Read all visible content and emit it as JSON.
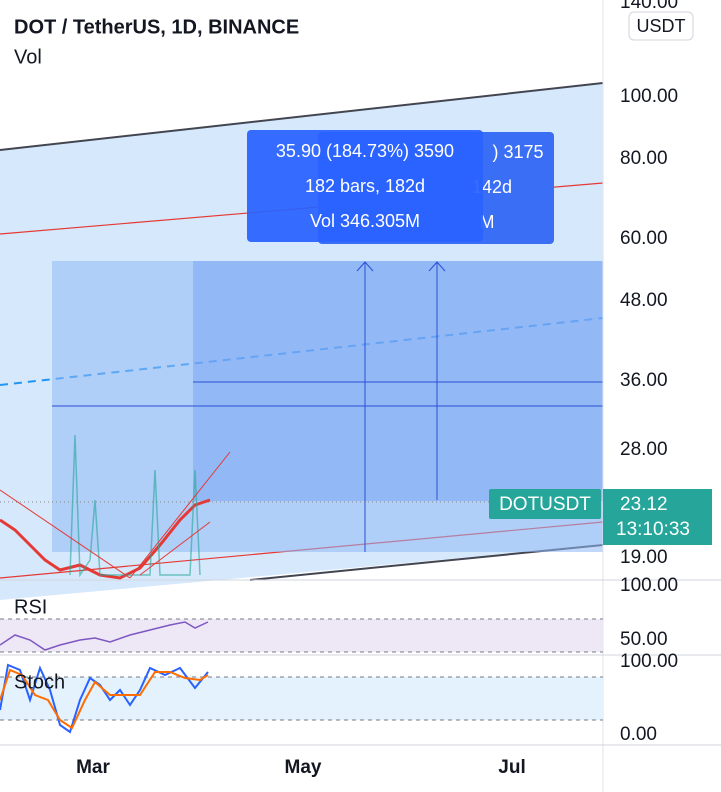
{
  "header": {
    "title": "DOT / TetherUS, 1D, BINANCE",
    "volume_label": "Vol"
  },
  "price_axis": {
    "labels": [
      "140.00",
      "100.00",
      "80.00",
      "60.00",
      "48.00",
      "36.00",
      "28.00",
      "19.00"
    ],
    "unit": "USDT"
  },
  "price_tag": {
    "symbol": "DOTUSDT",
    "price": "23.12",
    "countdown": "13:10:33"
  },
  "measure_front": {
    "lines": [
      "35.90 (184.73%) 3590",
      "182 bars, 182d",
      "Vol 346.305M"
    ]
  },
  "measure_back": {
    "lines": [
      ") 3175",
      "142d",
      "M"
    ]
  },
  "rsi": {
    "label": "RSI",
    "axis": [
      "100.00",
      "50.00"
    ]
  },
  "stoch": {
    "label": "Stoch",
    "axis": [
      "100.00",
      "0.00"
    ]
  },
  "time_axis": {
    "labels": [
      "Mar",
      "May",
      "Jul"
    ]
  }
}
